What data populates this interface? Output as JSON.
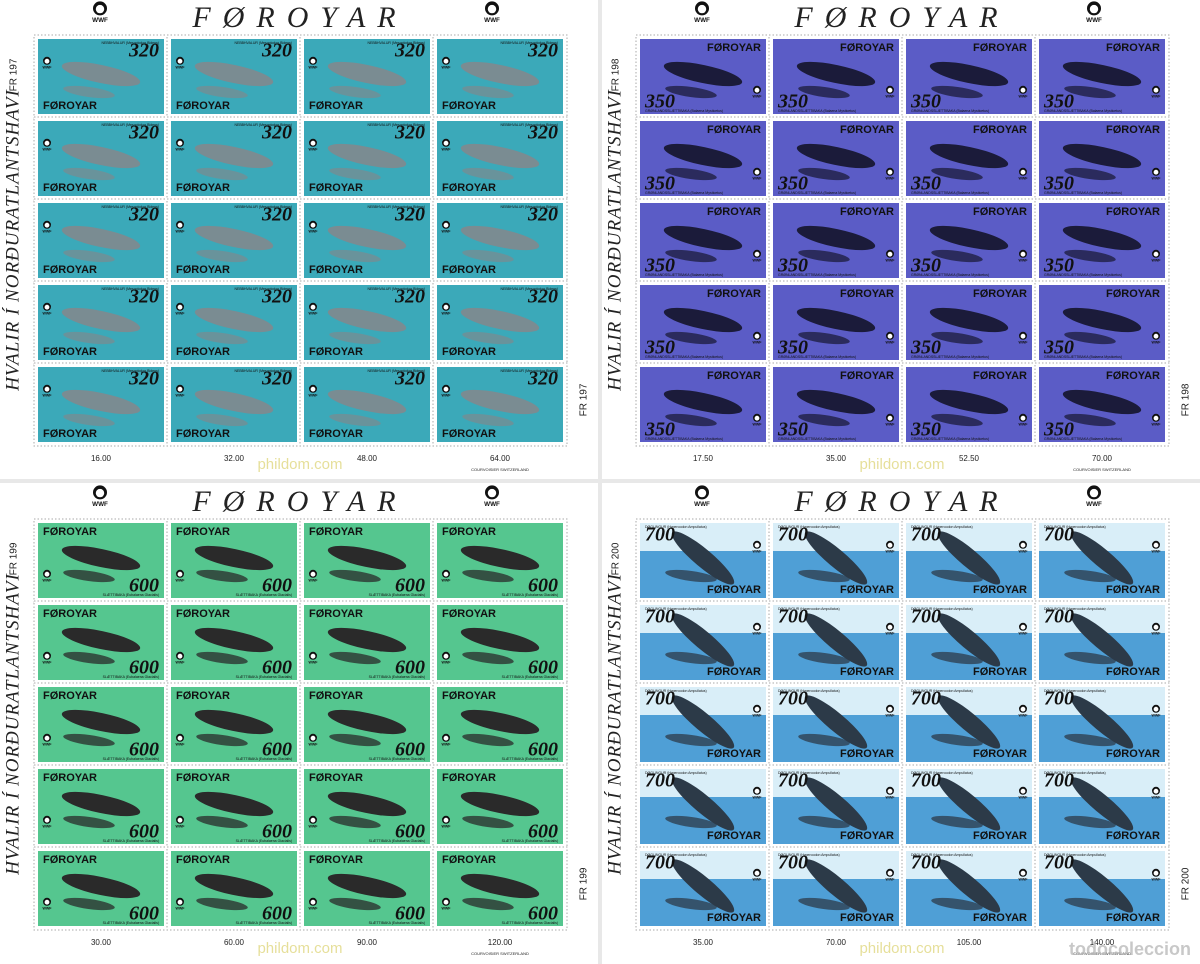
{
  "title": "FØROYAR",
  "side_text": "HVALIR Í NORÐURATLANTSHAVI",
  "wwf": "WWF",
  "printer": "COURVOISIER SWITZERLAND",
  "watermark": "phildom.com",
  "corner_watermark": "todocoleccion",
  "sheets": [
    {
      "code": "FR 197",
      "value": "320",
      "country": "FØROYAR",
      "species": "NEBBHVALUR (Mesoplodon Bidens)",
      "color": "#3ba9b9",
      "totals": [
        "16.00",
        "32.00",
        "48.00",
        "64.00"
      ]
    },
    {
      "code": "FR 198",
      "value": "350",
      "country": "FØROYAR",
      "species": "GRØNLANDSSLÆTTIBAKA (Balaena Mysticetus)",
      "color": "#5b5cc6",
      "totals": [
        "17.50",
        "35.00",
        "52.50",
        "70.00"
      ]
    },
    {
      "code": "FR 199",
      "value": "600",
      "country": "FØROYAR",
      "species": "SLÆTTIBAKA (Eubalaena Glacialis)",
      "color": "#55c68f",
      "totals": [
        "30.00",
        "60.00",
        "90.00",
        "120.00"
      ]
    },
    {
      "code": "FR 200",
      "value": "700",
      "country": "FØROYAR",
      "species": "DØGLINGUR (Hyperoodon Ampullatus)",
      "color": "#4f9fd6",
      "totals": [
        "35.00",
        "70.00",
        "105.00",
        "140.00"
      ]
    }
  ]
}
